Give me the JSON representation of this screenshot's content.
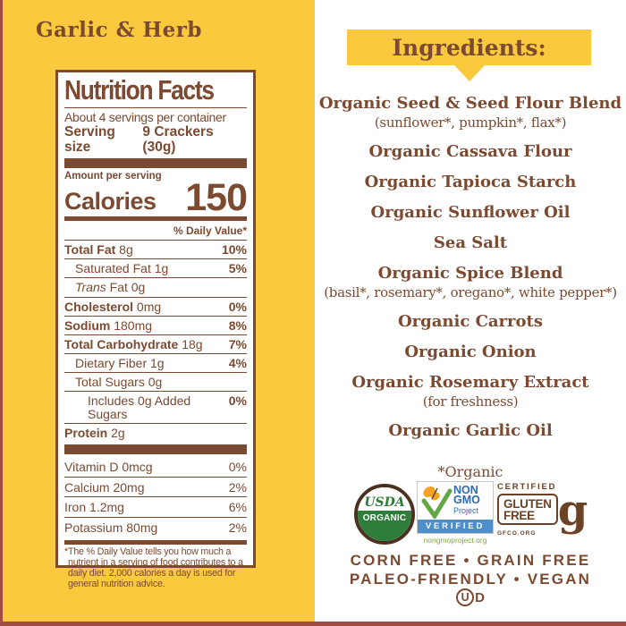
{
  "flavor_title": "Garlic & Herb",
  "nutrition": {
    "title": "Nutrition Facts",
    "servings_per_container": "About 4 servings per container",
    "serving_size_label": "Serving size",
    "serving_size_value": "9 Crackers (30g)",
    "amount_per_serving": "Amount per serving",
    "calories_label": "Calories",
    "calories_value": "150",
    "daily_value_header": "% Daily Value*",
    "rows": [
      {
        "b": "Total Fat",
        "r": "8g",
        "dv": "10%",
        "indent": 0,
        "dvb": true
      },
      {
        "r": "Saturated Fat 1g",
        "dv": "5%",
        "indent": 1,
        "dvb": true
      },
      {
        "it": "Trans",
        "r": "Fat 0g",
        "dv": "",
        "indent": 1
      },
      {
        "b": "Cholesterol",
        "r": "0mg",
        "dv": "0%",
        "indent": 0,
        "dvb": true
      },
      {
        "b": "Sodium",
        "r": "180mg",
        "dv": "8%",
        "indent": 0,
        "dvb": true
      },
      {
        "b": "Total Carbohydrate",
        "r": "18g",
        "dv": "7%",
        "indent": 0,
        "dvb": true
      },
      {
        "r": "Dietary Fiber 1g",
        "dv": "4%",
        "indent": 1,
        "dvb": true
      },
      {
        "r": "Total Sugars 0g",
        "dv": "",
        "indent": 1
      },
      {
        "r": "Includes 0g Added Sugars",
        "dv": "0%",
        "indent": 2,
        "dvb": true
      },
      {
        "b": "Protein",
        "r": "2g",
        "dv": "",
        "indent": 0
      }
    ],
    "vitamin_rows": [
      {
        "r": "Vitamin D 0mcg",
        "dv": "0%"
      },
      {
        "r": "Calcium 20mg",
        "dv": "2%"
      },
      {
        "r": "Iron 1.2mg",
        "dv": "6%"
      },
      {
        "r": "Potassium 80mg",
        "dv": "2%"
      }
    ],
    "footnote": "*The % Daily Value tells you how much a nutrient in a serving of food contributes to a daily diet. 2,000 calories a day is used for general nutrition advice."
  },
  "ingredients": {
    "title": "Ingredients:",
    "items": [
      {
        "text": "Organic Seed & Seed Flour Blend",
        "variant": "main"
      },
      {
        "text": "(sunflower*, pumpkin*, flax*)",
        "variant": "sub"
      },
      {
        "text": "Organic Cassava Flour",
        "variant": "main"
      },
      {
        "text": "Organic Tapioca Starch",
        "variant": "main"
      },
      {
        "text": "Organic Sunflower Oil",
        "variant": "main"
      },
      {
        "text": "Sea Salt",
        "variant": "main"
      },
      {
        "text": "Organic Spice Blend",
        "variant": "main"
      },
      {
        "text": "(basil*, rosemary*, oregano*, white pepper*)",
        "variant": "sub"
      },
      {
        "text": "Organic Carrots",
        "variant": "main"
      },
      {
        "text": "Organic Onion",
        "variant": "main"
      },
      {
        "text": "Organic Rosemary Extract",
        "variant": "main"
      },
      {
        "text": "(for freshness)",
        "variant": "sub"
      },
      {
        "text": "Organic Garlic Oil",
        "variant": "main"
      },
      {
        "text": "*Organic",
        "variant": "note"
      }
    ]
  },
  "badges": {
    "usda": {
      "line1": "USDA",
      "line2": "ORGANIC"
    },
    "nongmo": {
      "word1": "NON",
      "word2": "GMO",
      "word3": "Project",
      "verified": "VERIFIED",
      "url": "nongmoproject.org"
    },
    "gluten_free": {
      "certified": "CERTIFIED",
      "line1": "GLUTEN",
      "line2": "FREE",
      "glyph": "g",
      "org": "GFCO.ORG"
    }
  },
  "claims": {
    "line1": "CORN FREE • GRAIN FREE",
    "line2": "PALEO-FRIENDLY • VEGAN"
  },
  "kosher": {
    "circle_letter": "U",
    "dairy_letter": "D"
  },
  "colors": {
    "panel_yellow": "#FBC93E",
    "brown": "#7B4A31",
    "label_bg": "#FFFFFF",
    "edge_maroon": "#A04B44",
    "usda_green": "#2E7D3A",
    "usda_ring": "#4A3120",
    "nongmo_blue": "#2B6CB5",
    "nongmo_bar_blue": "#4C8FCB",
    "nongmo_green": "#62A744",
    "nongmo_orange": "#F5A21F",
    "nongmo_url_green": "#7FA83D",
    "gf_brown": "#6C4226"
  }
}
